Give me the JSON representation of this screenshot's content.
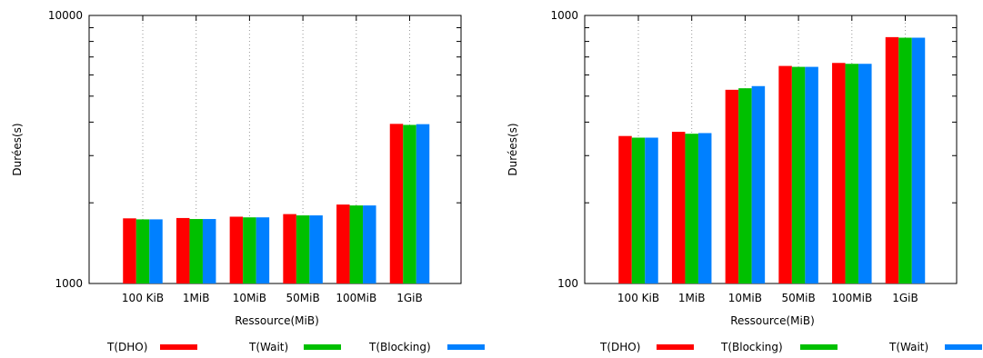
{
  "chart_data": [
    {
      "type": "bar",
      "title": "",
      "xlabel": "Ressource(MiB)",
      "ylabel": "Durées(s)",
      "yscale": "log",
      "ylim": [
        1000,
        10000
      ],
      "ytick_labels": [
        "10000",
        "1000"
      ],
      "categories": [
        "100 KiB",
        "1MiB",
        "10MiB",
        "50MiB",
        "100MiB",
        "1GiB"
      ],
      "grid": "vertical dotted",
      "legend": "bottom",
      "series": [
        {
          "name": "T(DHO)",
          "color": "#ff0000",
          "values": [
            1750,
            1755,
            1775,
            1815,
            1970,
            3940
          ]
        },
        {
          "name": "T(Wait)",
          "color": "#00c000",
          "values": [
            1735,
            1740,
            1765,
            1795,
            1955,
            3905
          ]
        },
        {
          "name": "T(Blocking)",
          "color": "#0080ff",
          "values": [
            1735,
            1740,
            1765,
            1795,
            1955,
            3930
          ]
        }
      ]
    },
    {
      "type": "bar",
      "title": "",
      "xlabel": "Ressource(MiB)",
      "ylabel": "Durées(s)",
      "yscale": "log",
      "ylim": [
        100,
        1000
      ],
      "ytick_labels": [
        "1000",
        "100"
      ],
      "categories": [
        "100 KiB",
        "1MiB",
        "10MiB",
        "50MiB",
        "100MiB",
        "1GiB"
      ],
      "grid": "vertical dotted",
      "legend": "bottom",
      "series": [
        {
          "name": "T(DHO)",
          "color": "#ff0000",
          "values": [
            355,
            368,
            528,
            648,
            665,
            830
          ]
        },
        {
          "name": "T(Blocking)",
          "color": "#00c000",
          "values": [
            350,
            362,
            535,
            643,
            660,
            826
          ]
        },
        {
          "name": "T(Wait)",
          "color": "#0080ff",
          "values": [
            350,
            364,
            545,
            643,
            660,
            826
          ]
        }
      ]
    }
  ]
}
